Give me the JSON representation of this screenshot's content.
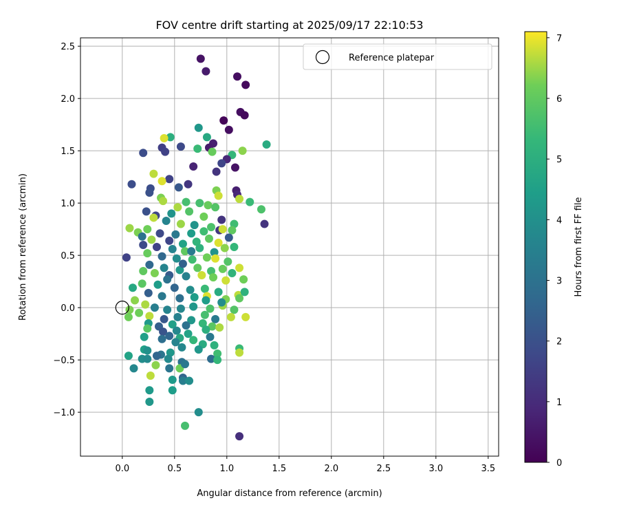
{
  "chart_data": {
    "type": "scatter",
    "title": "FOV centre drift starting at 2025/09/17 22:10:53",
    "xlabel": "Angular distance from reference (arcmin)",
    "ylabel": "Rotation from reference (arcmin)",
    "xlim": [
      -0.4,
      3.6
    ],
    "ylim": [
      -1.42,
      2.58
    ],
    "xticks": [
      0.0,
      0.5,
      1.0,
      1.5,
      2.0,
      2.5,
      3.0,
      3.5
    ],
    "xtick_labels": [
      "0.0",
      "0.5",
      "1.0",
      "1.5",
      "2.0",
      "2.5",
      "3.0",
      "3.5"
    ],
    "yticks": [
      -1.0,
      -0.5,
      0.0,
      0.5,
      1.0,
      1.5,
      2.0,
      2.5
    ],
    "ytick_labels": [
      "−1.0",
      "−0.5",
      "0.0",
      "0.5",
      "1.0",
      "1.5",
      "2.0",
      "2.5"
    ],
    "grid": true,
    "legend": {
      "placement": "top-right",
      "entries": [
        "Reference platepar"
      ]
    },
    "reference_point": {
      "x": 0.0,
      "y": 0.0,
      "label": "Reference platepar",
      "marker": "open-circle",
      "color": "#000000"
    },
    "colorbar": {
      "label": "Hours from first FF file",
      "colormap": "viridis",
      "range": [
        0,
        7.1
      ],
      "ticks": [
        0,
        1,
        2,
        3,
        4,
        5,
        6,
        7
      ],
      "tick_labels": [
        "0",
        "1",
        "2",
        "3",
        "4",
        "5",
        "6",
        "7"
      ]
    },
    "series": [
      {
        "color_by": "hours",
        "points": [
          [
            0.75,
            2.38,
            0.4
          ],
          [
            0.8,
            2.26,
            0.6
          ],
          [
            1.1,
            2.21,
            0.3
          ],
          [
            1.18,
            2.13,
            0.2
          ],
          [
            1.13,
            1.87,
            0.3
          ],
          [
            1.17,
            1.84,
            0.2
          ],
          [
            0.97,
            1.79,
            0.1
          ],
          [
            1.02,
            1.7,
            0.3
          ],
          [
            0.73,
            1.72,
            4.2
          ],
          [
            0.81,
            1.63,
            4.8
          ],
          [
            0.87,
            1.57,
            0.7
          ],
          [
            0.83,
            1.53,
            0.6
          ],
          [
            0.56,
            1.54,
            1.8
          ],
          [
            0.46,
            1.63,
            5.0
          ],
          [
            0.4,
            1.62,
            6.9
          ],
          [
            0.38,
            1.53,
            1.5
          ],
          [
            0.41,
            1.49,
            1.6
          ],
          [
            0.2,
            1.48,
            1.9
          ],
          [
            0.72,
            1.52,
            5.4
          ],
          [
            0.86,
            1.49,
            6.1
          ],
          [
            1.05,
            1.46,
            5.3
          ],
          [
            1.15,
            1.5,
            6.4
          ],
          [
            1.38,
            1.56,
            4.9
          ],
          [
            1.0,
            1.42,
            0.9
          ],
          [
            0.95,
            1.38,
            1.7
          ],
          [
            0.68,
            1.35,
            0.8
          ],
          [
            0.9,
            1.3,
            1.2
          ],
          [
            1.08,
            1.34,
            0.4
          ],
          [
            0.3,
            1.28,
            6.7
          ],
          [
            0.45,
            1.23,
            1.6
          ],
          [
            0.38,
            1.21,
            6.9
          ],
          [
            0.27,
            1.14,
            1.9
          ],
          [
            0.54,
            1.15,
            2.2
          ],
          [
            0.63,
            1.18,
            1.3
          ],
          [
            0.09,
            1.18,
            1.9
          ],
          [
            0.26,
            1.1,
            2.0
          ],
          [
            1.09,
            1.12,
            0.7
          ],
          [
            1.1,
            1.08,
            0.9
          ],
          [
            0.9,
            1.12,
            6.3
          ],
          [
            0.92,
            1.07,
            6.8
          ],
          [
            0.37,
            1.05,
            6.3
          ],
          [
            0.39,
            1.02,
            6.6
          ],
          [
            0.74,
            1.0,
            5.6
          ],
          [
            0.82,
            0.98,
            6.1
          ],
          [
            0.89,
            0.96,
            5.8
          ],
          [
            1.12,
            1.04,
            6.7
          ],
          [
            1.22,
            1.01,
            5.4
          ],
          [
            1.33,
            0.94,
            5.7
          ],
          [
            0.61,
            1.01,
            5.6
          ],
          [
            0.53,
            0.96,
            6.6
          ],
          [
            0.23,
            0.92,
            2.0
          ],
          [
            0.32,
            0.88,
            1.7
          ],
          [
            0.47,
            0.9,
            4.1
          ],
          [
            0.64,
            0.92,
            5.8
          ],
          [
            0.78,
            0.87,
            6.2
          ],
          [
            0.95,
            0.84,
            1.2
          ],
          [
            1.07,
            0.8,
            5.5
          ],
          [
            1.36,
            0.8,
            1.2
          ],
          [
            0.3,
            0.86,
            6.7
          ],
          [
            0.42,
            0.83,
            3.6
          ],
          [
            0.56,
            0.8,
            6.5
          ],
          [
            0.69,
            0.79,
            4.1
          ],
          [
            0.85,
            0.77,
            5.7
          ],
          [
            0.93,
            0.74,
            1.3
          ],
          [
            1.05,
            0.74,
            6.0
          ],
          [
            0.07,
            0.76,
            6.5
          ],
          [
            0.15,
            0.72,
            6.3
          ],
          [
            0.24,
            0.75,
            6.2
          ],
          [
            0.36,
            0.71,
            1.8
          ],
          [
            0.51,
            0.7,
            3.2
          ],
          [
            0.66,
            0.71,
            4.4
          ],
          [
            0.78,
            0.73,
            5.5
          ],
          [
            0.96,
            0.75,
            6.8
          ],
          [
            0.19,
            0.68,
            3.0
          ],
          [
            0.28,
            0.65,
            6.5
          ],
          [
            0.45,
            0.64,
            1.7
          ],
          [
            0.58,
            0.61,
            4.6
          ],
          [
            0.71,
            0.63,
            5.2
          ],
          [
            0.83,
            0.66,
            6.0
          ],
          [
            0.92,
            0.62,
            6.9
          ],
          [
            1.02,
            0.67,
            2.3
          ],
          [
            0.2,
            0.6,
            1.8
          ],
          [
            0.33,
            0.58,
            1.6
          ],
          [
            0.48,
            0.56,
            3.6
          ],
          [
            0.6,
            0.54,
            6.0
          ],
          [
            0.74,
            0.57,
            5.1
          ],
          [
            0.88,
            0.53,
            4.1
          ],
          [
            0.98,
            0.57,
            6.4
          ],
          [
            1.07,
            0.58,
            5.3
          ],
          [
            0.04,
            0.48,
            1.6
          ],
          [
            0.24,
            0.52,
            6.1
          ],
          [
            0.38,
            0.49,
            2.7
          ],
          [
            0.52,
            0.47,
            3.9
          ],
          [
            0.67,
            0.46,
            5.5
          ],
          [
            0.81,
            0.48,
            6.2
          ],
          [
            0.89,
            0.47,
            6.9
          ],
          [
            1.01,
            0.44,
            5.8
          ],
          [
            0.26,
            0.41,
            2.7
          ],
          [
            0.4,
            0.38,
            3.6
          ],
          [
            0.55,
            0.36,
            4.3
          ],
          [
            0.72,
            0.38,
            6.0
          ],
          [
            0.85,
            0.35,
            5.6
          ],
          [
            0.96,
            0.37,
            6.1
          ],
          [
            1.12,
            0.38,
            6.8
          ],
          [
            1.05,
            0.33,
            5.2
          ],
          [
            0.2,
            0.35,
            6.0
          ],
          [
            0.31,
            0.33,
            6.3
          ],
          [
            0.45,
            0.31,
            2.3
          ],
          [
            0.61,
            0.3,
            3.5
          ],
          [
            0.76,
            0.31,
            6.8
          ],
          [
            0.87,
            0.29,
            6.2
          ],
          [
            0.99,
            0.26,
            6.8
          ],
          [
            1.16,
            0.27,
            6.2
          ],
          [
            0.19,
            0.23,
            5.9
          ],
          [
            0.34,
            0.22,
            4.4
          ],
          [
            0.5,
            0.19,
            2.6
          ],
          [
            0.65,
            0.17,
            3.9
          ],
          [
            0.79,
            0.18,
            5.4
          ],
          [
            0.92,
            0.15,
            4.9
          ],
          [
            1.11,
            0.12,
            6.7
          ],
          [
            1.17,
            0.15,
            5.1
          ],
          [
            0.1,
            0.19,
            4.8
          ],
          [
            0.25,
            0.14,
            2.4
          ],
          [
            0.38,
            0.11,
            3.2
          ],
          [
            0.55,
            0.09,
            2.9
          ],
          [
            0.69,
            0.1,
            4.4
          ],
          [
            0.81,
            0.11,
            6.9
          ],
          [
            0.99,
            0.08,
            6.3
          ],
          [
            1.12,
            0.09,
            6.0
          ],
          [
            0.12,
            0.07,
            6.4
          ],
          [
            0.22,
            0.03,
            6.6
          ],
          [
            0.31,
            0.0,
            3.4
          ],
          [
            0.43,
            -0.02,
            3.6
          ],
          [
            0.56,
            -0.01,
            3.7
          ],
          [
            0.68,
            0.01,
            4.2
          ],
          [
            0.84,
            -0.01,
            5.7
          ],
          [
            0.96,
            0.02,
            6.5
          ],
          [
            1.07,
            -0.02,
            5.8
          ],
          [
            0.07,
            -0.02,
            6.3
          ],
          [
            0.16,
            -0.05,
            6.2
          ],
          [
            0.26,
            -0.08,
            6.7
          ],
          [
            0.4,
            -0.11,
            2.2
          ],
          [
            0.53,
            -0.09,
            3.5
          ],
          [
            0.66,
            -0.12,
            4.2
          ],
          [
            0.79,
            -0.07,
            5.6
          ],
          [
            0.89,
            -0.11,
            3.3
          ],
          [
            1.04,
            -0.09,
            6.7
          ],
          [
            1.18,
            -0.09,
            6.8
          ],
          [
            0.06,
            -0.09,
            6.2
          ],
          [
            0.25,
            -0.15,
            4.3
          ],
          [
            0.35,
            -0.18,
            2.4
          ],
          [
            0.48,
            -0.16,
            4.5
          ],
          [
            0.61,
            -0.17,
            3.0
          ],
          [
            0.77,
            -0.15,
            5.3
          ],
          [
            0.86,
            -0.18,
            5.9
          ],
          [
            0.24,
            -0.2,
            5.9
          ],
          [
            0.39,
            -0.23,
            2.1
          ],
          [
            0.52,
            -0.22,
            3.7
          ],
          [
            0.63,
            -0.25,
            4.6
          ],
          [
            0.8,
            -0.21,
            5.0
          ],
          [
            0.93,
            -0.19,
            6.6
          ],
          [
            0.45,
            -0.27,
            2.6
          ],
          [
            0.55,
            -0.29,
            4.8
          ],
          [
            0.68,
            -0.31,
            5.3
          ],
          [
            0.84,
            -0.28,
            3.2
          ],
          [
            0.21,
            -0.28,
            4.5
          ],
          [
            0.38,
            -0.3,
            2.9
          ],
          [
            0.51,
            -0.33,
            3.6
          ],
          [
            0.77,
            -0.35,
            4.9
          ],
          [
            0.88,
            -0.36,
            5.1
          ],
          [
            0.57,
            -0.38,
            3.7
          ],
          [
            0.73,
            -0.4,
            4.2
          ],
          [
            1.12,
            -0.39,
            5.4
          ],
          [
            0.21,
            -0.4,
            4.5
          ],
          [
            0.24,
            -0.41,
            4.0
          ],
          [
            0.37,
            -0.45,
            3.1
          ],
          [
            0.46,
            -0.43,
            4.2
          ],
          [
            0.91,
            -0.44,
            5.5
          ],
          [
            1.12,
            -0.43,
            6.7
          ],
          [
            0.06,
            -0.46,
            4.6
          ],
          [
            0.19,
            -0.49,
            3.9
          ],
          [
            0.24,
            -0.49,
            3.8
          ],
          [
            0.33,
            -0.46,
            2.6
          ],
          [
            0.44,
            -0.49,
            3.8
          ],
          [
            0.57,
            -0.52,
            3.0
          ],
          [
            0.85,
            -0.49,
            2.8
          ],
          [
            0.91,
            -0.5,
            5.3
          ],
          [
            0.11,
            -0.58,
            3.7
          ],
          [
            0.32,
            -0.55,
            6.4
          ],
          [
            0.45,
            -0.58,
            3.1
          ],
          [
            0.55,
            -0.58,
            6.2
          ],
          [
            0.6,
            -0.54,
            3.2
          ],
          [
            0.27,
            -0.65,
            6.7
          ],
          [
            0.58,
            -0.67,
            2.6
          ],
          [
            0.48,
            -0.69,
            4.3
          ],
          [
            0.58,
            -0.7,
            3.4
          ],
          [
            0.64,
            -0.7,
            3.9
          ],
          [
            0.26,
            -0.79,
            4.3
          ],
          [
            0.48,
            -0.79,
            4.4
          ],
          [
            0.26,
            -0.9,
            4.2
          ],
          [
            0.73,
            -1.0,
            3.9
          ],
          [
            0.6,
            -1.13,
            5.6
          ],
          [
            1.12,
            -1.23,
            1.1
          ],
          [
            0.8,
            0.07,
            4.4
          ],
          [
            0.95,
            0.05,
            3.9
          ],
          [
            0.66,
            0.54,
            3.3
          ],
          [
            0.43,
            0.27,
            3.0
          ],
          [
            0.58,
            0.42,
            2.5
          ]
        ]
      }
    ]
  }
}
